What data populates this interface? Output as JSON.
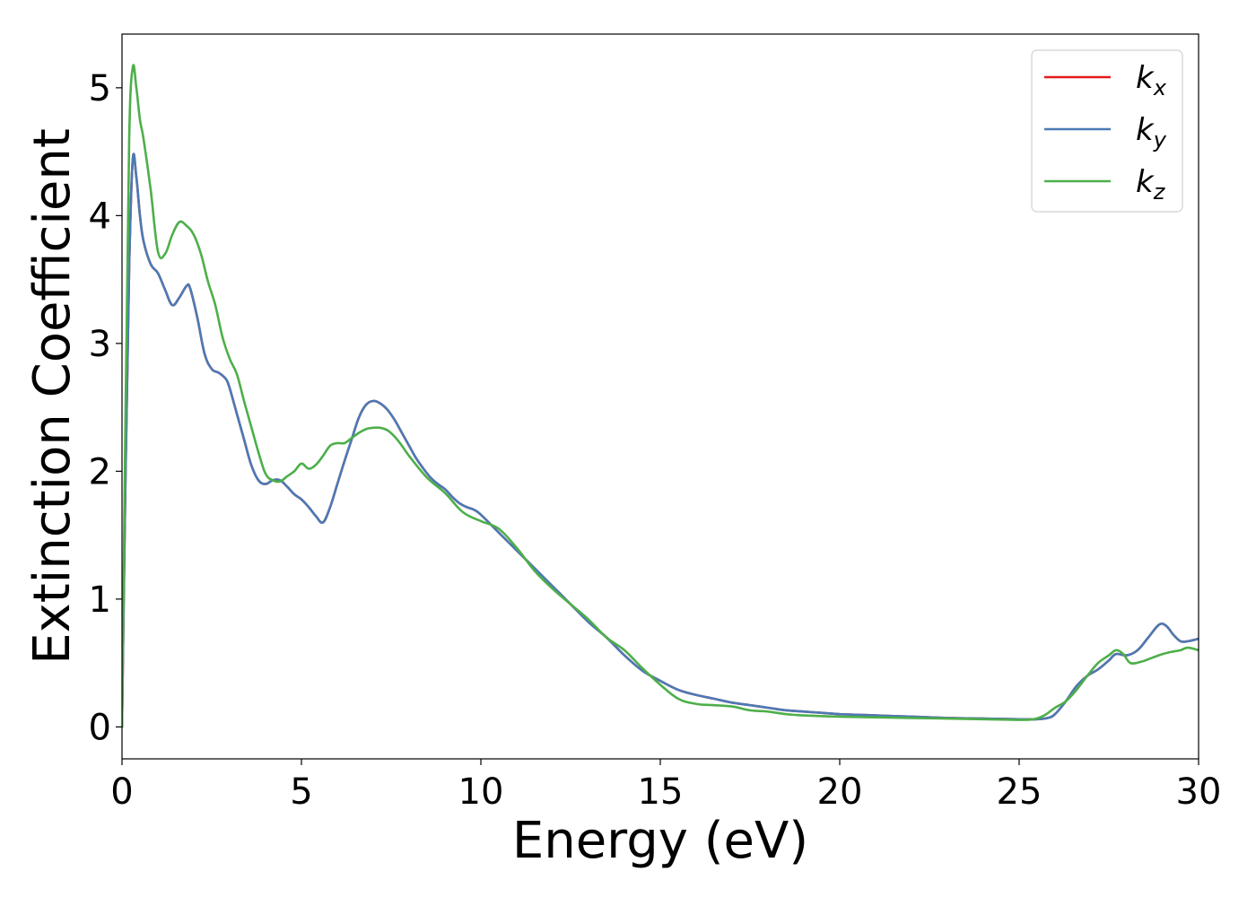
{
  "chart_data": {
    "type": "line",
    "title": "",
    "xlabel": "Energy (eV)",
    "ylabel": "Extinction Coefficient",
    "xlim": [
      0,
      30
    ],
    "ylim": [
      -0.25,
      5.42
    ],
    "xticks": [
      0,
      5,
      10,
      15,
      20,
      25,
      30
    ],
    "xtick_labels": [
      "0",
      "5",
      "10",
      "15",
      "20",
      "25",
      "30"
    ],
    "yticks": [
      0,
      1,
      2,
      3,
      4,
      5
    ],
    "ytick_labels": [
      "0",
      "1",
      "2",
      "3",
      "4",
      "5"
    ],
    "grid": false,
    "legend": {
      "position": "top-right"
    },
    "series": [
      {
        "name": "k",
        "subscript": "x",
        "color": "#e41a1c",
        "x": [
          0,
          0.1,
          0.2,
          0.3,
          0.4,
          0.5,
          0.6,
          0.8,
          1.0,
          1.2,
          1.4,
          1.6,
          1.8,
          1.9,
          2.1,
          2.3,
          2.5,
          2.7,
          2.9,
          3.0,
          3.2,
          3.4,
          3.6,
          3.8,
          4.0,
          4.2,
          4.4,
          4.6,
          4.8,
          5.0,
          5.2,
          5.4,
          5.6,
          5.8,
          6.0,
          6.2,
          6.4,
          6.6,
          6.8,
          7.0,
          7.2,
          7.4,
          7.6,
          7.8,
          8.0,
          8.2,
          8.4,
          8.6,
          8.8,
          9.0,
          9.2,
          9.4,
          9.6,
          9.8,
          10.0,
          10.5,
          11.0,
          11.5,
          12.0,
          12.5,
          13.0,
          13.5,
          14.0,
          14.5,
          15.0,
          15.5,
          16.0,
          16.5,
          17.0,
          17.5,
          18.0,
          18.5,
          19.0,
          19.5,
          20.0,
          21.0,
          22.0,
          23.0,
          24.0,
          25.0,
          25.5,
          25.8,
          26.0,
          26.3,
          26.6,
          26.9,
          27.2,
          27.5,
          27.7,
          28.0,
          28.3,
          28.6,
          28.9,
          29.1,
          29.3,
          29.5,
          29.7,
          30.0
        ],
        "values": [
          0.0,
          2.0,
          3.6,
          4.44,
          4.3,
          4.0,
          3.8,
          3.62,
          3.55,
          3.42,
          3.3,
          3.36,
          3.45,
          3.43,
          3.2,
          2.92,
          2.8,
          2.77,
          2.72,
          2.65,
          2.45,
          2.25,
          2.05,
          1.93,
          1.9,
          1.93,
          1.93,
          1.88,
          1.82,
          1.78,
          1.72,
          1.65,
          1.6,
          1.72,
          1.9,
          2.08,
          2.25,
          2.42,
          2.52,
          2.55,
          2.53,
          2.48,
          2.4,
          2.3,
          2.2,
          2.1,
          2.02,
          1.95,
          1.9,
          1.86,
          1.8,
          1.75,
          1.72,
          1.7,
          1.66,
          1.52,
          1.38,
          1.24,
          1.1,
          0.96,
          0.82,
          0.7,
          0.56,
          0.44,
          0.36,
          0.29,
          0.25,
          0.22,
          0.19,
          0.17,
          0.15,
          0.13,
          0.12,
          0.11,
          0.1,
          0.09,
          0.08,
          0.07,
          0.065,
          0.06,
          0.06,
          0.07,
          0.1,
          0.2,
          0.32,
          0.4,
          0.45,
          0.52,
          0.57,
          0.56,
          0.6,
          0.7,
          0.8,
          0.79,
          0.72,
          0.67,
          0.67,
          0.69
        ]
      },
      {
        "name": "k",
        "subscript": "y",
        "color": "#4a7ab5",
        "x": [
          0,
          0.1,
          0.2,
          0.3,
          0.4,
          0.5,
          0.6,
          0.8,
          1.0,
          1.2,
          1.4,
          1.6,
          1.8,
          1.9,
          2.1,
          2.3,
          2.5,
          2.7,
          2.9,
          3.0,
          3.2,
          3.4,
          3.6,
          3.8,
          4.0,
          4.2,
          4.4,
          4.6,
          4.8,
          5.0,
          5.2,
          5.4,
          5.6,
          5.8,
          6.0,
          6.2,
          6.4,
          6.6,
          6.8,
          7.0,
          7.2,
          7.4,
          7.6,
          7.8,
          8.0,
          8.2,
          8.4,
          8.6,
          8.8,
          9.0,
          9.2,
          9.4,
          9.6,
          9.8,
          10.0,
          10.5,
          11.0,
          11.5,
          12.0,
          12.5,
          13.0,
          13.5,
          14.0,
          14.5,
          15.0,
          15.5,
          16.0,
          16.5,
          17.0,
          17.5,
          18.0,
          18.5,
          19.0,
          19.5,
          20.0,
          21.0,
          22.0,
          23.0,
          24.0,
          25.0,
          25.5,
          25.8,
          26.0,
          26.3,
          26.6,
          26.9,
          27.2,
          27.5,
          27.7,
          28.0,
          28.3,
          28.6,
          28.9,
          29.1,
          29.3,
          29.5,
          29.7,
          30.0
        ],
        "values": [
          0.0,
          2.0,
          3.6,
          4.44,
          4.3,
          4.0,
          3.8,
          3.62,
          3.55,
          3.42,
          3.3,
          3.36,
          3.45,
          3.43,
          3.2,
          2.92,
          2.8,
          2.77,
          2.72,
          2.65,
          2.45,
          2.25,
          2.05,
          1.93,
          1.9,
          1.93,
          1.93,
          1.88,
          1.82,
          1.78,
          1.72,
          1.65,
          1.6,
          1.72,
          1.9,
          2.08,
          2.25,
          2.42,
          2.52,
          2.55,
          2.53,
          2.48,
          2.4,
          2.3,
          2.2,
          2.1,
          2.02,
          1.95,
          1.9,
          1.86,
          1.8,
          1.75,
          1.72,
          1.7,
          1.66,
          1.52,
          1.38,
          1.24,
          1.1,
          0.96,
          0.82,
          0.7,
          0.56,
          0.44,
          0.36,
          0.29,
          0.25,
          0.22,
          0.19,
          0.17,
          0.15,
          0.13,
          0.12,
          0.11,
          0.1,
          0.09,
          0.08,
          0.07,
          0.065,
          0.06,
          0.06,
          0.07,
          0.1,
          0.2,
          0.32,
          0.4,
          0.45,
          0.52,
          0.57,
          0.56,
          0.6,
          0.7,
          0.8,
          0.79,
          0.72,
          0.67,
          0.67,
          0.69
        ]
      },
      {
        "name": "k",
        "subscript": "z",
        "color": "#4daf4a",
        "x": [
          0,
          0.1,
          0.2,
          0.3,
          0.4,
          0.5,
          0.6,
          0.8,
          1.0,
          1.2,
          1.4,
          1.6,
          1.8,
          2.0,
          2.2,
          2.4,
          2.6,
          2.8,
          3.0,
          3.2,
          3.4,
          3.6,
          3.8,
          4.0,
          4.2,
          4.4,
          4.6,
          4.8,
          5.0,
          5.2,
          5.4,
          5.6,
          5.8,
          6.0,
          6.2,
          6.4,
          6.6,
          6.8,
          7.0,
          7.2,
          7.4,
          7.6,
          7.8,
          8.0,
          8.5,
          9.0,
          9.5,
          10.0,
          10.5,
          11.0,
          11.5,
          12.0,
          12.5,
          13.0,
          13.5,
          14.0,
          14.5,
          15.0,
          15.5,
          16.0,
          16.5,
          17.0,
          17.5,
          18.0,
          18.5,
          19.0,
          20.0,
          21.0,
          22.0,
          23.0,
          24.0,
          25.0,
          25.4,
          25.7,
          26.0,
          26.3,
          26.6,
          26.9,
          27.2,
          27.5,
          27.7,
          27.9,
          28.1,
          28.4,
          28.7,
          29.0,
          29.3,
          29.5,
          29.7,
          30.0
        ],
        "values": [
          0.0,
          2.5,
          4.6,
          5.16,
          5.0,
          4.75,
          4.6,
          4.2,
          3.72,
          3.7,
          3.85,
          3.95,
          3.92,
          3.85,
          3.7,
          3.48,
          3.3,
          3.05,
          2.88,
          2.76,
          2.55,
          2.35,
          2.15,
          1.98,
          1.93,
          1.92,
          1.96,
          2.0,
          2.06,
          2.02,
          2.05,
          2.12,
          2.2,
          2.22,
          2.22,
          2.26,
          2.3,
          2.33,
          2.34,
          2.34,
          2.32,
          2.27,
          2.2,
          2.12,
          1.95,
          1.83,
          1.68,
          1.61,
          1.55,
          1.4,
          1.22,
          1.08,
          0.96,
          0.84,
          0.7,
          0.6,
          0.46,
          0.33,
          0.22,
          0.18,
          0.17,
          0.16,
          0.13,
          0.12,
          0.1,
          0.09,
          0.08,
          0.075,
          0.07,
          0.065,
          0.06,
          0.055,
          0.06,
          0.09,
          0.15,
          0.2,
          0.29,
          0.4,
          0.5,
          0.56,
          0.6,
          0.57,
          0.5,
          0.51,
          0.54,
          0.57,
          0.59,
          0.6,
          0.62,
          0.6
        ]
      }
    ]
  }
}
